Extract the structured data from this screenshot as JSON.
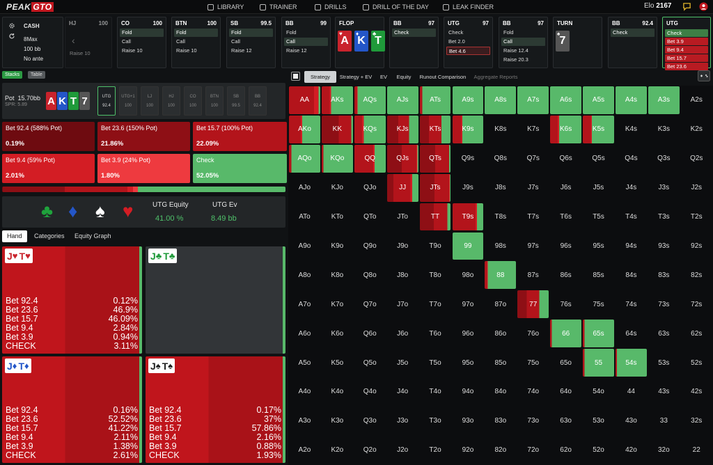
{
  "brand": {
    "left": "PEAK",
    "right": "GTO"
  },
  "nav": [
    {
      "label": "LIBRARY",
      "icon": "book-icon"
    },
    {
      "label": "TRAINER",
      "icon": "gamepad-icon"
    },
    {
      "label": "DRILLS",
      "icon": "drills-icon"
    },
    {
      "label": "DRILL OF THE DAY",
      "icon": "target-icon"
    },
    {
      "label": "LEAK FINDER",
      "icon": "drop-icon"
    }
  ],
  "elo": {
    "label": "Elo",
    "value": "2167"
  },
  "settings": {
    "game": "CASH",
    "format": "8Max",
    "stack": "100 bb",
    "ante": "No ante"
  },
  "action_strip": [
    {
      "pos": "HJ",
      "stack": "100",
      "actions": [
        {
          "label": "Raise 10"
        }
      ]
    },
    {
      "pos": "CO",
      "stack": "100",
      "actions": [
        {
          "label": "Fold",
          "sel": true
        },
        {
          "label": "Call"
        },
        {
          "label": "Raise 10"
        }
      ]
    },
    {
      "pos": "BTN",
      "stack": "100",
      "actions": [
        {
          "label": "Fold",
          "sel": true
        },
        {
          "label": "Call"
        },
        {
          "label": "Raise 10"
        }
      ]
    },
    {
      "pos": "SB",
      "stack": "99.5",
      "actions": [
        {
          "label": "Fold",
          "sel": true
        },
        {
          "label": "Call"
        },
        {
          "label": "Raise 12"
        }
      ]
    },
    {
      "pos": "BB",
      "stack": "99",
      "actions": [
        {
          "label": "Fold"
        },
        {
          "label": "Call",
          "sel": true
        },
        {
          "label": "Raise 12"
        }
      ]
    },
    {
      "pos": "FLOP",
      "stack": "",
      "cards": [
        {
          "rank": "A",
          "suit": "♥",
          "color": "#c9232c"
        },
        {
          "rank": "K",
          "suit": "♦",
          "color": "#2456c8"
        },
        {
          "rank": "T",
          "suit": "♣",
          "color": "#1f9a3a"
        }
      ]
    },
    {
      "pos": "BB",
      "stack": "97",
      "actions": [
        {
          "label": "Check",
          "sel": true
        }
      ]
    },
    {
      "pos": "UTG",
      "stack": "97",
      "actions": [
        {
          "label": "Check"
        },
        {
          "label": "Bet 2.0"
        },
        {
          "label": "Bet 4.6",
          "selr": true
        }
      ]
    },
    {
      "pos": "BB",
      "stack": "97",
      "actions": [
        {
          "label": "Fold"
        },
        {
          "label": "Call",
          "sel": true
        },
        {
          "label": "Raise 12.4"
        },
        {
          "label": "Raise 20.3"
        }
      ]
    },
    {
      "pos": "TURN",
      "stack": "",
      "cards": [
        {
          "rank": "7",
          "suit": "♠",
          "color": "#555"
        }
      ]
    },
    {
      "pos": "BB",
      "stack": "92.4",
      "actions": [
        {
          "label": "Check",
          "sel": true
        }
      ]
    },
    {
      "pos": "UTG",
      "stack": "",
      "actions": [
        {
          "label": "Check",
          "g": true
        },
        {
          "label": "Bet 3.9",
          "r": true
        },
        {
          "label": "Bet 9.4",
          "r": true
        },
        {
          "label": "Bet 15.7",
          "r": true
        },
        {
          "label": "Bet 23.6",
          "r": true
        }
      ]
    }
  ],
  "subtabs": {
    "stacks": "Stacks",
    "table": "Table"
  },
  "pot": {
    "label": "Pot",
    "value": "15.70bb",
    "spr": "SPR: 5.89"
  },
  "board": [
    {
      "rank": "A",
      "color": "#c9232c"
    },
    {
      "rank": "K",
      "color": "#2456c8"
    },
    {
      "rank": "T",
      "color": "#1f9a3a"
    },
    {
      "rank": "7",
      "color": "#555"
    }
  ],
  "positions": [
    {
      "name": "UTG",
      "stack": "92.4",
      "active": true
    },
    {
      "name": "UTG+1",
      "stack": "100"
    },
    {
      "name": "LJ",
      "stack": "100"
    },
    {
      "name": "HJ",
      "stack": "100"
    },
    {
      "name": "CO",
      "stack": "100"
    },
    {
      "name": "BTN",
      "stack": "100"
    },
    {
      "name": "SB",
      "stack": "99.5"
    },
    {
      "name": "BB",
      "stack": "92.4"
    }
  ],
  "bets": [
    {
      "label": "Bet 92.4 (588% Pot)",
      "value": "0.19%",
      "color": "#6e0b10"
    },
    {
      "label": "Bet 23.6 (150% Pot)",
      "value": "21.86%",
      "color": "#8e0f15"
    },
    {
      "label": "Bet 15.7 (100% Pot)",
      "value": "22.09%",
      "color": "#b3141b"
    },
    {
      "label": "Bet 9.4 (59% Pot)",
      "value": "2.01%",
      "color": "#d31d24"
    },
    {
      "label": "Bet 3.9 (24% Pot)",
      "value": "1.80%",
      "color": "#ee3a3f"
    },
    {
      "label": "Check",
      "value": "52.05%",
      "color": "#58b96a"
    }
  ],
  "freqbar": [
    0.0019,
    0.2186,
    0.2209,
    0.0201,
    0.018,
    0.5205
  ],
  "equity": {
    "suits": [
      "♣",
      "♦",
      "♠",
      "♥"
    ],
    "eq_label": "UTG Equity",
    "eq_value": "41.00 %",
    "ev_label": "UTG Ev",
    "ev_value": "8.49 bb"
  },
  "handtabs": [
    "Hand",
    "Categories",
    "Equity Graph"
  ],
  "hands": [
    {
      "r1": "J",
      "s1": "♥",
      "c1": "#c9232c",
      "r2": "T",
      "s2": "♥",
      "c2": "#c9232c",
      "rows": [
        [
          "Bet 92.4",
          "0.12%"
        ],
        [
          "Bet 23.6",
          "46.9%"
        ],
        [
          "Bet 15.7",
          "46.09%"
        ],
        [
          "Bet 9.4",
          "2.84%"
        ],
        [
          "Bet 3.9",
          "0.94%"
        ],
        [
          "CHECK",
          "3.11%"
        ]
      ]
    },
    {
      "r1": "J",
      "s1": "♣",
      "c1": "#1f9a3a",
      "r2": "T",
      "s2": "♣",
      "c2": "#1f9a3a",
      "rows": []
    },
    {
      "r1": "J",
      "s1": "♦",
      "c1": "#2456c8",
      "r2": "T",
      "s2": "♦",
      "c2": "#2456c8",
      "rows": [
        [
          "Bet 92.4",
          "0.16%"
        ],
        [
          "Bet 23.6",
          "52.52%"
        ],
        [
          "Bet 15.7",
          "41.22%"
        ],
        [
          "Bet 9.4",
          "2.11%"
        ],
        [
          "Bet 3.9",
          "1.38%"
        ],
        [
          "CHECK",
          "2.61%"
        ]
      ]
    },
    {
      "r1": "J",
      "s1": "♠",
      "c1": "#222",
      "r2": "T",
      "s2": "♠",
      "c2": "#222",
      "rows": [
        [
          "Bet 92.4",
          "0.17%"
        ],
        [
          "Bet 23.6",
          "37%"
        ],
        [
          "Bet 15.7",
          "57.86%"
        ],
        [
          "Bet 9.4",
          "2.16%"
        ],
        [
          "Bet 3.9",
          "0.88%"
        ],
        [
          "CHECK",
          "1.93%"
        ]
      ]
    }
  ],
  "viewtabs": [
    "Strategy",
    "Strategy + EV",
    "EV",
    "Equity",
    "Runout Comparison",
    "Aggregate Reports"
  ],
  "grid": [
    [
      "AA",
      "AKs",
      "AQs",
      "AJs",
      "ATs",
      "A9s",
      "A8s",
      "A7s",
      "A6s",
      "A5s",
      "A4s",
      "A3s",
      "A2s"
    ],
    [
      "AKo",
      "KK",
      "KQs",
      "KJs",
      "KTs",
      "K9s",
      "K8s",
      "K7s",
      "K6s",
      "K5s",
      "K4s",
      "K3s",
      "K2s"
    ],
    [
      "AQo",
      "KQo",
      "QQ",
      "QJs",
      "QTs",
      "Q9s",
      "Q8s",
      "Q7s",
      "Q6s",
      "Q5s",
      "Q4s",
      "Q3s",
      "Q2s"
    ],
    [
      "AJo",
      "KJo",
      "QJo",
      "JJ",
      "JTs",
      "J9s",
      "J8s",
      "J7s",
      "J6s",
      "J5s",
      "J4s",
      "J3s",
      "J2s"
    ],
    [
      "ATo",
      "KTo",
      "QTo",
      "JTo",
      "TT",
      "T9s",
      "T8s",
      "T7s",
      "T6s",
      "T5s",
      "T4s",
      "T3s",
      "T2s"
    ],
    [
      "A9o",
      "K9o",
      "Q9o",
      "J9o",
      "T9o",
      "99",
      "98s",
      "97s",
      "96s",
      "95s",
      "94s",
      "93s",
      "92s"
    ],
    [
      "A8o",
      "K8o",
      "Q8o",
      "J8o",
      "T8o",
      "98o",
      "88",
      "87s",
      "86s",
      "85s",
      "84s",
      "83s",
      "82s"
    ],
    [
      "A7o",
      "K7o",
      "Q7o",
      "J7o",
      "T7o",
      "97o",
      "87o",
      "77",
      "76s",
      "75s",
      "74s",
      "73s",
      "72s"
    ],
    [
      "A6o",
      "K6o",
      "Q6o",
      "J6o",
      "T6o",
      "96o",
      "86o",
      "76o",
      "66",
      "65s",
      "64s",
      "63s",
      "62s"
    ],
    [
      "A5o",
      "K5o",
      "Q5o",
      "J5o",
      "T5o",
      "95o",
      "85o",
      "75o",
      "65o",
      "55",
      "54s",
      "53s",
      "52s"
    ],
    [
      "A4o",
      "K4o",
      "Q4o",
      "J4o",
      "T4o",
      "94o",
      "84o",
      "74o",
      "64o",
      "54o",
      "44",
      "43s",
      "42s"
    ],
    [
      "A3o",
      "K3o",
      "Q3o",
      "J3o",
      "T3o",
      "93o",
      "83o",
      "73o",
      "63o",
      "53o",
      "43o",
      "33",
      "32s"
    ],
    [
      "A2o",
      "K2o",
      "Q2o",
      "J2o",
      "T2o",
      "92o",
      "82o",
      "72o",
      "62o",
      "52o",
      "42o",
      "32o",
      "22"
    ]
  ],
  "grid_strategy": {
    "AA": [
      0,
      0,
      0.8,
      0.15,
      0,
      0.05
    ],
    "AKs": [
      0,
      0,
      0.25,
      0.05,
      0,
      0.7
    ],
    "AQs": [
      0,
      0,
      0.08,
      0.02,
      0,
      0.9
    ],
    "AJs": [
      0,
      0,
      0,
      0,
      0,
      1
    ],
    "ATs": [
      0,
      0,
      0.08,
      0,
      0,
      0.92
    ],
    "A9s": [
      0,
      0,
      0,
      0,
      0,
      1
    ],
    "A8s": [
      0,
      0,
      0,
      0,
      0,
      1
    ],
    "A7s": [
      0,
      0,
      0,
      0,
      0,
      1
    ],
    "A6s": [
      0,
      0,
      0,
      0,
      0,
      1
    ],
    "A5s": [
      0,
      0,
      0,
      0,
      0,
      1
    ],
    "A4s": [
      0,
      0,
      0,
      0,
      0,
      1
    ],
    "A3s": [
      0,
      0,
      0,
      0,
      0,
      1
    ],
    "AKo": [
      0,
      0,
      0.38,
      0.04,
      0,
      0.58
    ],
    "KK": [
      0,
      0.55,
      0.4,
      0,
      0,
      0.05
    ],
    "KQs": [
      0,
      0,
      0.25,
      0.05,
      0,
      0.7
    ],
    "KJs": [
      0,
      0.35,
      0.35,
      0,
      0,
      0.3
    ],
    "KTs": [
      0,
      0.3,
      0.4,
      0,
      0,
      0.3
    ],
    "K9s": [
      0,
      0,
      0.28,
      0.04,
      0,
      0.68
    ],
    "K6s": [
      0,
      0,
      0.25,
      0.04,
      0,
      0.71
    ],
    "K5s": [
      0,
      0,
      0.25,
      0.04,
      0,
      0.71
    ],
    "AQo": [
      0,
      0,
      0.08,
      0,
      0,
      0.92
    ],
    "KQo": [
      0,
      0,
      0.05,
      0,
      0,
      0.95
    ],
    "QQ": [
      0,
      0,
      0.6,
      0.05,
      0,
      0.35
    ],
    "QJs": [
      0,
      0.47,
      0.46,
      0.03,
      0.01,
      0.03
    ],
    "QTs": [
      0,
      0.5,
      0.45,
      0,
      0,
      0.05
    ],
    "JJ": [
      0,
      0.2,
      0.55,
      0.05,
      0,
      0.2
    ],
    "JTs": [
      0,
      0.48,
      0.48,
      0.02,
      0,
      0.02
    ],
    "TT": [
      0,
      0.45,
      0.45,
      0,
      0,
      0.1
    ],
    "T9s": [
      0,
      0,
      0.75,
      0.05,
      0,
      0.2
    ],
    "99": [
      0,
      0,
      0,
      0,
      0,
      1
    ],
    "88": [
      0,
      0,
      0.08,
      0.02,
      0,
      0.9
    ],
    "77": [
      0,
      0.3,
      0.4,
      0,
      0,
      0.3
    ],
    "66": [
      0,
      0,
      0.05,
      0,
      0,
      0.95
    ],
    "65s": [
      0,
      0,
      0.05,
      0,
      0,
      0.95
    ],
    "55": [
      0,
      0,
      0.05,
      0,
      0,
      0.95
    ],
    "54s": [
      0,
      0,
      0.05,
      0,
      0,
      0.95
    ]
  },
  "colors": {
    "bet92": "#6e0b10",
    "bet23": "#8e0f15",
    "bet15": "#b3141b",
    "bet9": "#d31d24",
    "bet3": "#ee3a3f",
    "check": "#58b96a",
    "accent": "#c2171f"
  }
}
